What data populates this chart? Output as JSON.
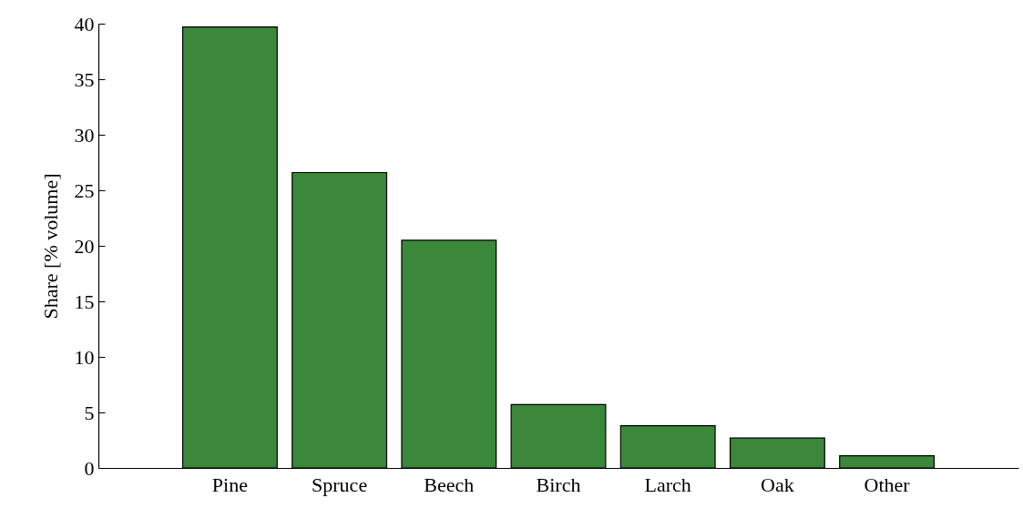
{
  "chart_data": {
    "type": "bar",
    "ylabel": "Share [% volume]",
    "categories": [
      "Pine",
      "Spruce",
      "Beech",
      "Birch",
      "Larch",
      "Oak",
      "Other"
    ],
    "values": [
      39.7,
      26.6,
      20.5,
      5.7,
      3.8,
      2.7,
      1.1
    ],
    "color": "#3b883a",
    "ylim": [
      0,
      40
    ],
    "yticks": [
      0,
      5,
      10,
      15,
      20,
      25,
      30,
      35,
      40
    ],
    "grid": false
  }
}
